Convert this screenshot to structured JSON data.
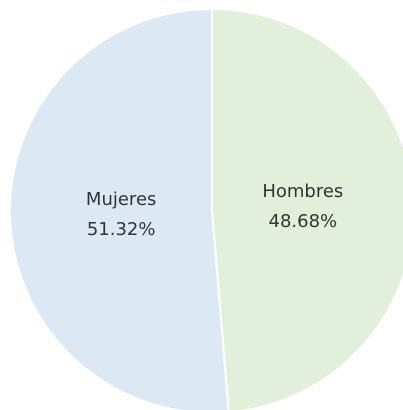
{
  "chart_data": {
    "type": "pie",
    "categories": [
      "Hombres",
      "Mujeres"
    ],
    "values": [
      48.68,
      51.32
    ],
    "value_labels": [
      "48.68%",
      "51.32%"
    ],
    "colors": [
      "#e2efda",
      "#dde8f5"
    ]
  }
}
